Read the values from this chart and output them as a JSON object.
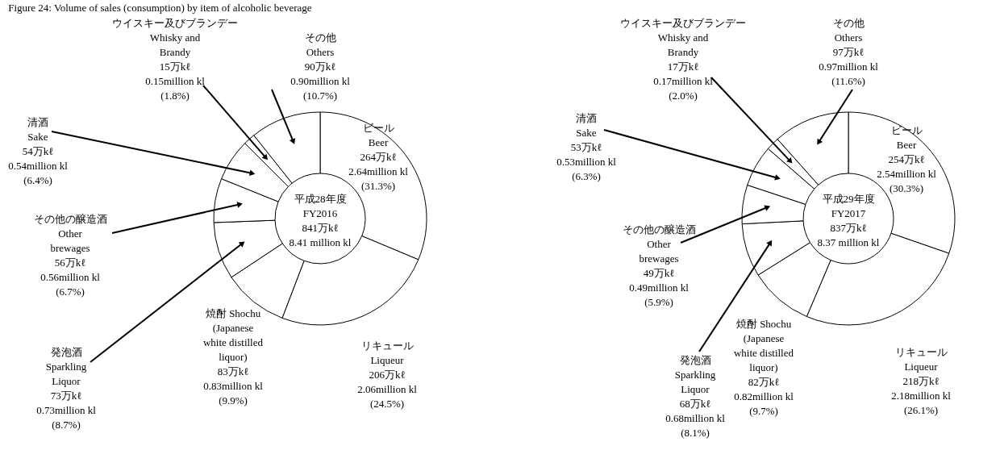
{
  "chart_data": [
    {
      "type": "donut",
      "title": "Figure 24: Volume of sales (consumption) by item of alcoholic beverage",
      "categories": [
        "ビール\nBeer",
        "リキュール\nLiqueur",
        "焼酎 Shochu\n(Japanese\nwhite distilled\nliquor)",
        "発泡酒\nSparkling\nLiquor",
        "その他の醸造酒\nOther\nbrewages",
        "清酒\nSake",
        "ウイスキー及びブランデー\nWhisky and\nBrandy",
        "その他\nOthers"
      ],
      "values": [
        31.3,
        24.5,
        9.9,
        8.7,
        6.7,
        6.4,
        1.8,
        10.7
      ],
      "value_labels": [
        "264万kℓ\n2.64million kl\n(31.3%)",
        "206万kℓ\n2.06million kl\n(24.5%)",
        "83万kℓ\n0.83million kl\n(9.9%)",
        "73万kℓ\n0.73million kl\n(8.7%)",
        "56万kℓ\n0.56million kl\n(6.7%)",
        "54万kℓ\n0.54million kl\n(6.4%)",
        "15万kℓ\n0.15million kl\n(1.8%)",
        "90万kℓ\n0.90million kl\n(10.7%)"
      ],
      "colors": [
        "#ffffff",
        "#ffffff",
        "#ffffff",
        "#ffffff",
        "#ffffff",
        "#ffffff",
        "#ffffff",
        "#ffffff"
      ],
      "annotations": [
        "平成28年度\nFY2016\n841万kℓ\n8.41 million kl"
      ]
    },
    {
      "type": "donut",
      "categories": [
        "ビール\nBeer",
        "リキュール\nLiqueur",
        "焼酎 Shochu\n(Japanese\nwhite distilled\nliquor)",
        "発泡酒\nSparkling\nLiquor",
        "その他の醸造酒\nOther\nbrewages",
        "清酒\nSake",
        "ウイスキー及びブランデー\nWhisky and\nBrandy",
        "その他\nOthers"
      ],
      "values": [
        30.3,
        26.1,
        9.7,
        8.1,
        5.9,
        6.3,
        2.0,
        11.6
      ],
      "value_labels": [
        "254万kℓ\n2.54million kl\n(30.3%)",
        "218万kℓ\n2.18million kl\n(26.1%)",
        "82万kℓ\n0.82million kl\n(9.7%)",
        "68万kℓ\n0.68million kl\n(8.1%)",
        "49万kℓ\n0.49million kl\n(5.9%)",
        "53万kℓ\n0.53million kl\n(6.3%)",
        "17万kℓ\n0.17million kl\n(2.0%)",
        "97万kℓ\n0.97million kl\n(11.6%)"
      ],
      "colors": [
        "#ffffff",
        "#ffffff",
        "#ffffff",
        "#ffffff",
        "#ffffff",
        "#ffffff",
        "#ffffff",
        "#ffffff"
      ],
      "annotations": [
        "平成29年度\nFY2017\n837万kℓ\n8.37 million kl"
      ]
    }
  ]
}
